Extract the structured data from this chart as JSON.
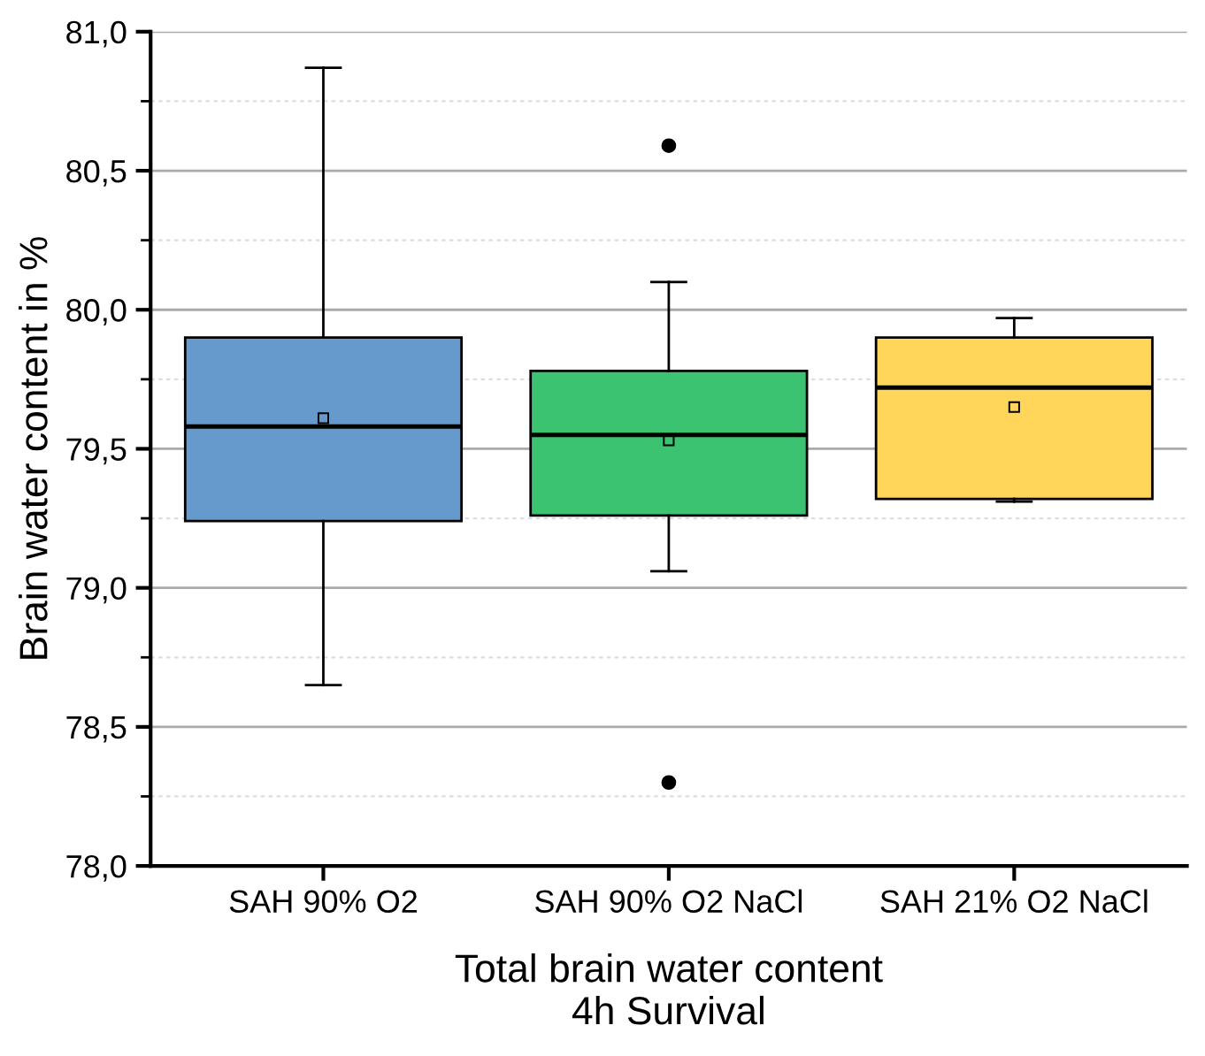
{
  "chart_data": {
    "type": "box",
    "categories": [
      "SAH 90% O2",
      "SAH 90% O2 NaCl",
      "SAH 21% O2 NaCl"
    ],
    "colors": [
      "#6699cc",
      "#3cc371",
      "#ffd55a"
    ],
    "boxes": [
      {
        "low": 78.65,
        "q1": 79.24,
        "median": 79.58,
        "q3": 79.9,
        "high": 80.87,
        "mean": 79.61
      },
      {
        "low": 79.06,
        "q1": 79.26,
        "median": 79.55,
        "q3": 79.78,
        "high": 80.1,
        "mean": 79.53,
        "outliers": [
          80.59,
          78.3
        ]
      },
      {
        "low": 79.31,
        "q1": 79.32,
        "median": 79.72,
        "q3": 79.9,
        "high": 79.97,
        "mean": 79.65
      }
    ],
    "ylim": [
      78.0,
      81.0
    ],
    "yticks": [
      {
        "value": 78.0,
        "label": "78,0"
      },
      {
        "value": 78.5,
        "label": "78,5"
      },
      {
        "value": 79.0,
        "label": "79,0"
      },
      {
        "value": 79.5,
        "label": "79,5"
      },
      {
        "value": 80.0,
        "label": "80,0"
      },
      {
        "value": 80.5,
        "label": "80,5"
      },
      {
        "value": 81.0,
        "label": "81,0"
      }
    ],
    "ylabel": "Brain water content in %",
    "xlabel": "Total brain water content\n4h Survival",
    "grid": "y"
  }
}
